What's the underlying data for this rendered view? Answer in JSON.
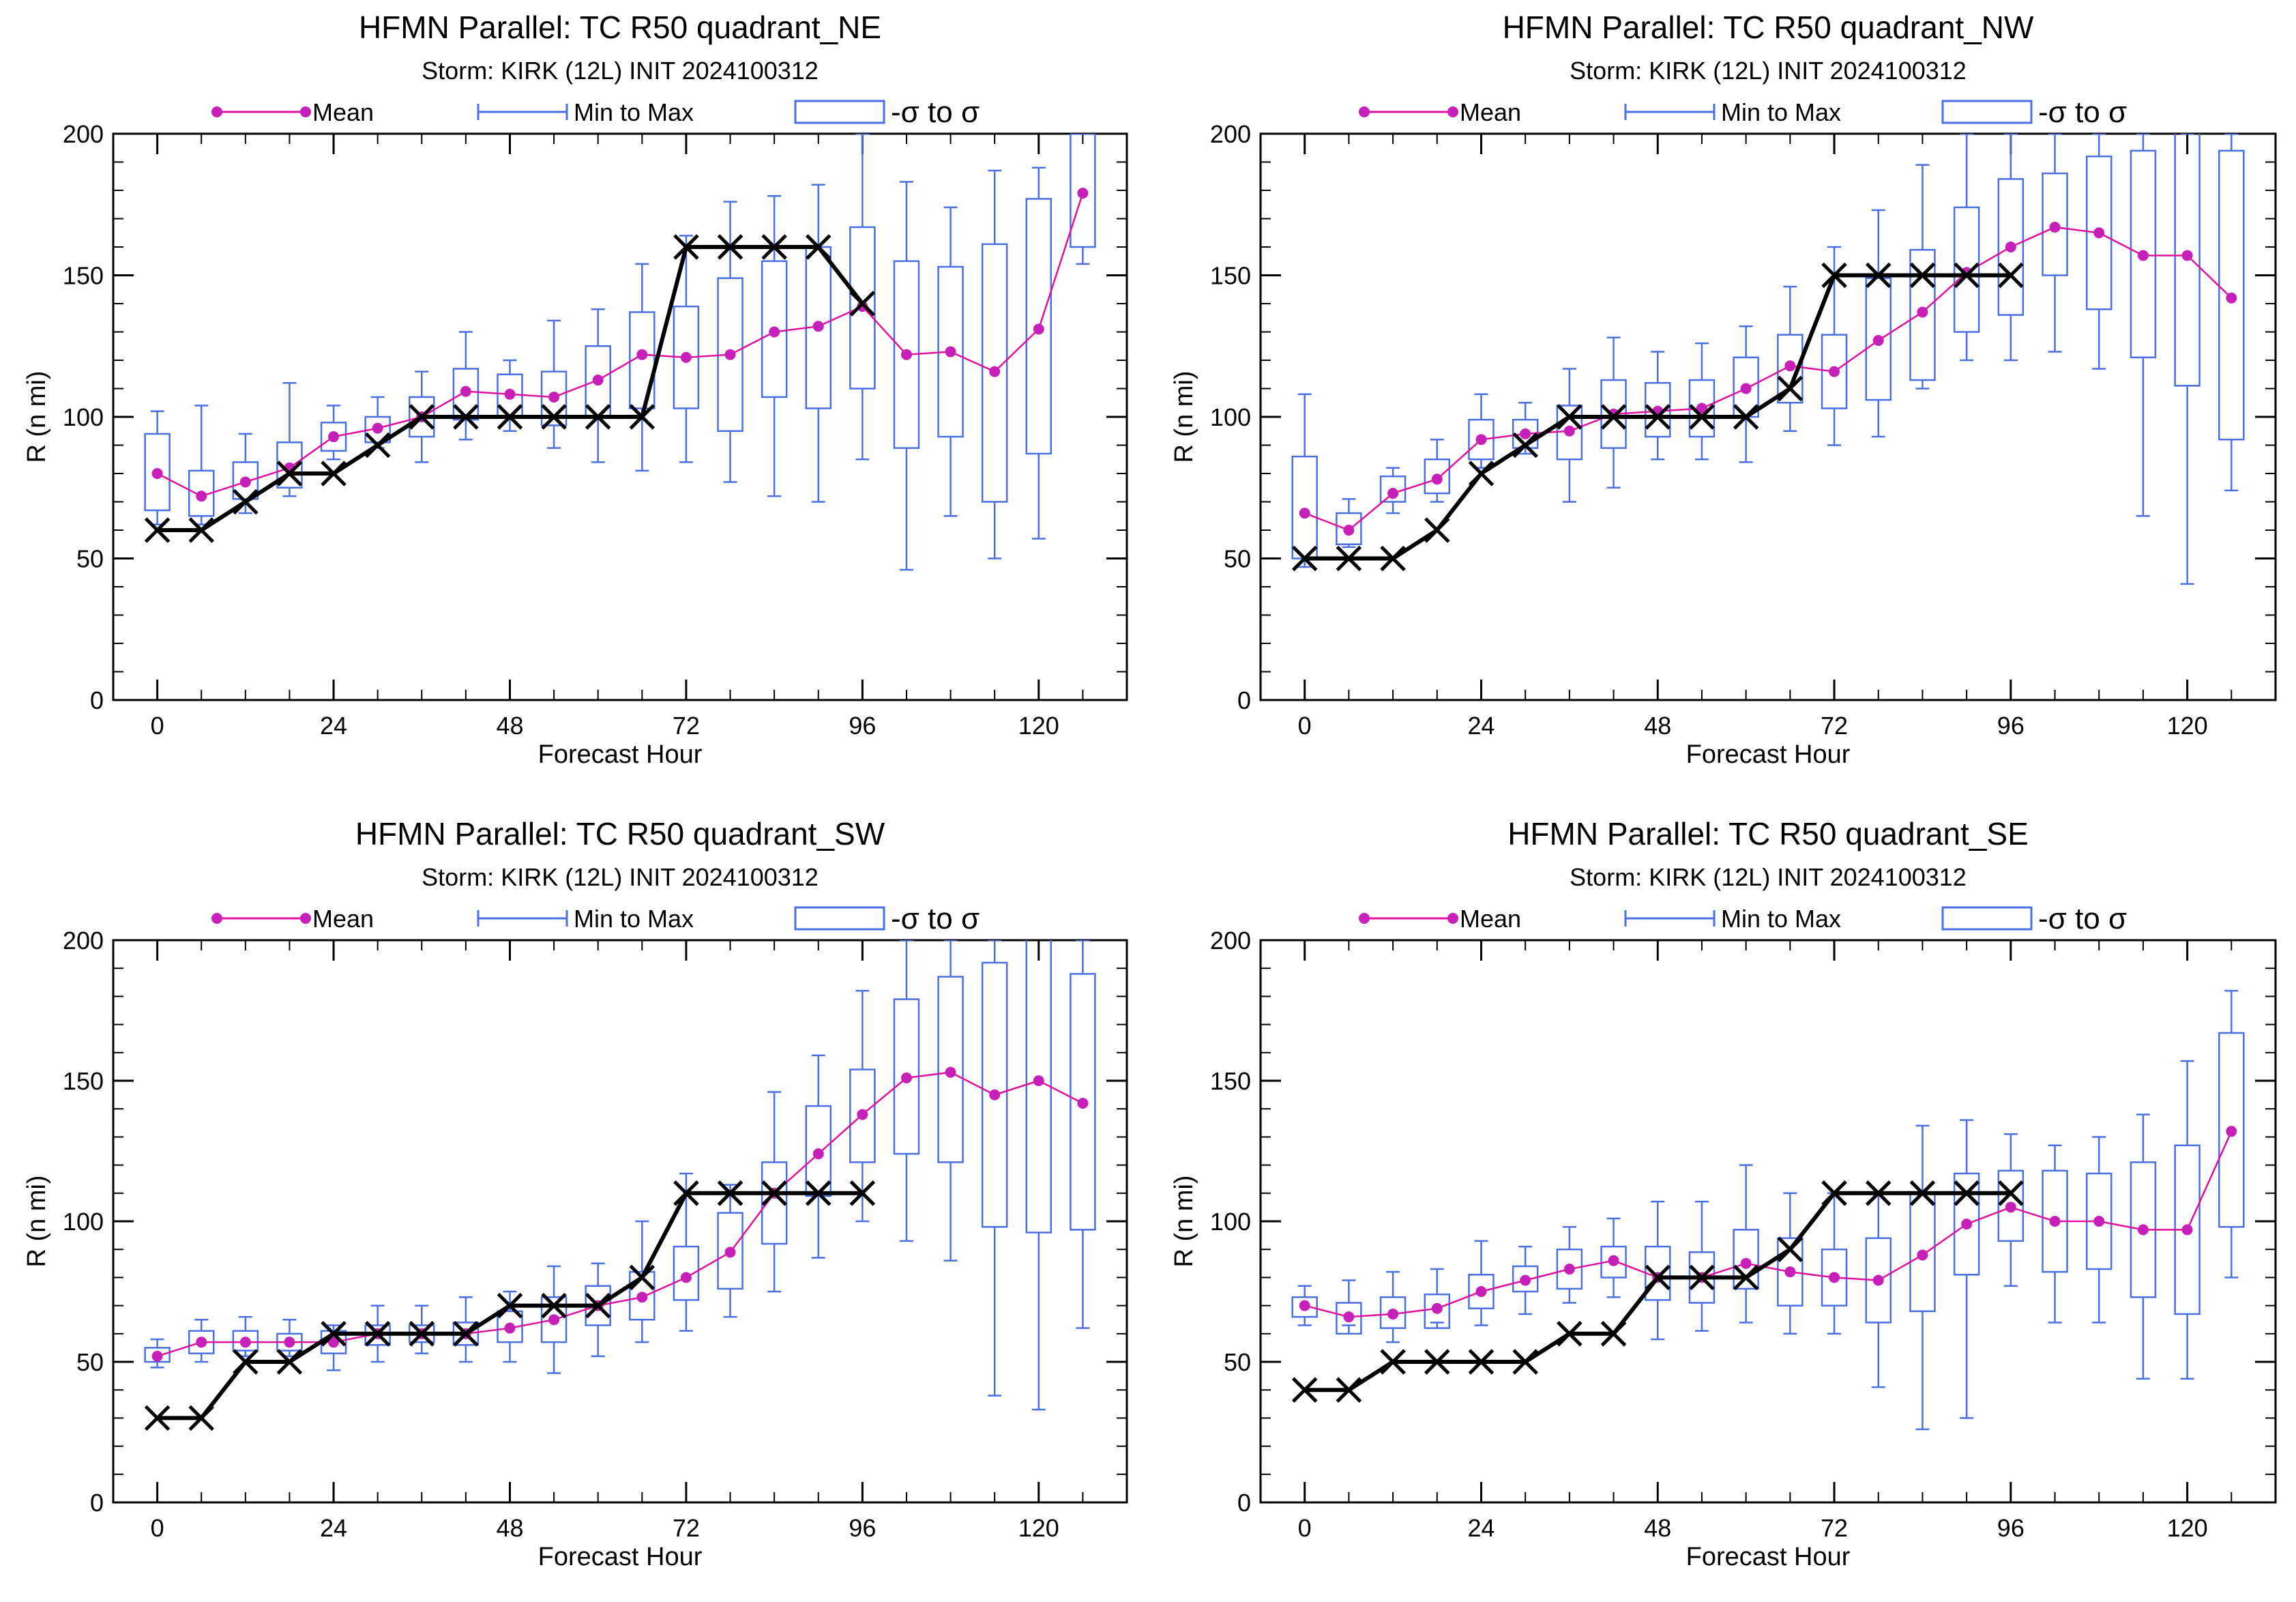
{
  "legend": {
    "mean_label": "Mean",
    "minmax_label": "Min to Max",
    "sigma_label": "-σ to σ"
  },
  "colors": {
    "mean": "#e0109f",
    "mean_dot": "#c720b9",
    "box": "#4a6fe3",
    "best_track": "#000000",
    "axes": "#000000"
  },
  "chart_data": [
    {
      "type": "box",
      "title": "HFMN Parallel: TC  R50 quadrant_NE",
      "subtitle": "Storm: KIRK (12L) INIT 2024100312",
      "xlabel": "Forecast Hour",
      "ylabel": "R (n mi)",
      "xticks": [
        "0",
        "24",
        "48",
        "72",
        "96",
        "120"
      ],
      "yticks": [
        "0",
        "50",
        "100",
        "150",
        "200"
      ],
      "xlim": [
        -6,
        132
      ],
      "ylim": [
        0,
        200
      ],
      "legend_position": "top",
      "hours": [
        0,
        6,
        12,
        18,
        24,
        30,
        36,
        42,
        48,
        54,
        60,
        66,
        72,
        78,
        84,
        90,
        96,
        102,
        108,
        114,
        120,
        126
      ],
      "mean": [
        80,
        72,
        77,
        82,
        93,
        96,
        100,
        109,
        108,
        107,
        113,
        122,
        121,
        122,
        130,
        132,
        139,
        122,
        123,
        116,
        131,
        179
      ],
      "min": [
        62,
        62,
        66,
        72,
        85,
        89,
        84,
        92,
        95,
        89,
        84,
        81,
        84,
        77,
        72,
        70,
        85,
        46,
        65,
        50,
        57,
        154
      ],
      "max": [
        102,
        104,
        94,
        112,
        104,
        107,
        116,
        130,
        120,
        134,
        138,
        154,
        164,
        176,
        178,
        182,
        200,
        183,
        174,
        187,
        188,
        200
      ],
      "sigma_low": [
        67,
        65,
        71,
        75,
        88,
        91,
        93,
        99,
        100,
        97,
        100,
        103,
        103,
        95,
        107,
        103,
        110,
        89,
        93,
        70,
        87,
        160
      ],
      "sigma_high": [
        94,
        81,
        84,
        91,
        98,
        100,
        107,
        117,
        115,
        116,
        125,
        137,
        139,
        149,
        155,
        160,
        167,
        155,
        153,
        161,
        177,
        200
      ],
      "best_track_hours": [
        0,
        6,
        12,
        18,
        24,
        30,
        36,
        42,
        48,
        54,
        60,
        66,
        72,
        78,
        84,
        90,
        96
      ],
      "best_track": [
        60,
        60,
        70,
        80,
        80,
        90,
        100,
        100,
        100,
        100,
        100,
        100,
        160,
        160,
        160,
        160,
        140
      ]
    },
    {
      "type": "box",
      "title": "HFMN Parallel: TC  R50 quadrant_NW",
      "subtitle": "Storm: KIRK (12L) INIT 2024100312",
      "xlabel": "Forecast Hour",
      "ylabel": "R (n mi)",
      "xticks": [
        "0",
        "24",
        "48",
        "72",
        "96",
        "120"
      ],
      "yticks": [
        "0",
        "50",
        "100",
        "150",
        "200"
      ],
      "xlim": [
        -6,
        132
      ],
      "ylim": [
        0,
        200
      ],
      "legend_position": "top",
      "hours": [
        0,
        6,
        12,
        18,
        24,
        30,
        36,
        42,
        48,
        54,
        60,
        66,
        72,
        78,
        84,
        90,
        96,
        102,
        108,
        114,
        120,
        126
      ],
      "mean": [
        66,
        60,
        73,
        78,
        92,
        94,
        95,
        101,
        102,
        103,
        110,
        118,
        116,
        127,
        137,
        151,
        160,
        167,
        165,
        157,
        157,
        142
      ],
      "min": [
        47,
        54,
        66,
        70,
        82,
        87,
        70,
        75,
        85,
        85,
        84,
        95,
        90,
        93,
        110,
        120,
        120,
        123,
        117,
        65,
        41,
        74
      ],
      "max": [
        108,
        71,
        82,
        92,
        108,
        105,
        117,
        128,
        123,
        126,
        132,
        146,
        160,
        173,
        189,
        200,
        200,
        200,
        200,
        200,
        200,
        200
      ],
      "sigma_low": [
        50,
        55,
        70,
        73,
        85,
        89,
        85,
        89,
        93,
        93,
        100,
        105,
        103,
        106,
        113,
        130,
        136,
        150,
        138,
        121,
        111,
        92
      ],
      "sigma_high": [
        86,
        66,
        79,
        85,
        99,
        99,
        104,
        113,
        112,
        113,
        121,
        129,
        129,
        149,
        159,
        174,
        184,
        186,
        192,
        194,
        202,
        194
      ],
      "best_track_hours": [
        0,
        6,
        12,
        18,
        24,
        30,
        36,
        42,
        48,
        54,
        60,
        66,
        72,
        78,
        84,
        90,
        96
      ],
      "best_track": [
        50,
        50,
        50,
        60,
        80,
        90,
        100,
        100,
        100,
        100,
        100,
        110,
        150,
        150,
        150,
        150,
        150
      ]
    },
    {
      "type": "box",
      "title": "HFMN Parallel: TC  R50 quadrant_SW",
      "subtitle": "Storm: KIRK (12L) INIT 2024100312",
      "xlabel": "Forecast Hour",
      "ylabel": "R (n mi)",
      "xticks": [
        "0",
        "24",
        "48",
        "72",
        "96",
        "120"
      ],
      "yticks": [
        "0",
        "50",
        "100",
        "150",
        "200"
      ],
      "xlim": [
        -6,
        132
      ],
      "ylim": [
        0,
        200
      ],
      "legend_position": "top",
      "hours": [
        0,
        6,
        12,
        18,
        24,
        30,
        36,
        42,
        48,
        54,
        60,
        66,
        72,
        78,
        84,
        90,
        96,
        102,
        108,
        114,
        120,
        126
      ],
      "mean": [
        52,
        57,
        57,
        57,
        57,
        60,
        60,
        60,
        62,
        65,
        70,
        73,
        80,
        89,
        110,
        124,
        138,
        151,
        153,
        145,
        150,
        142
      ],
      "min": [
        48,
        50,
        52,
        52,
        47,
        50,
        53,
        50,
        50,
        46,
        52,
        57,
        61,
        66,
        75,
        87,
        100,
        93,
        86,
        38,
        33,
        62
      ],
      "max": [
        58,
        65,
        66,
        65,
        63,
        70,
        70,
        73,
        75,
        84,
        85,
        100,
        117,
        113,
        146,
        159,
        182,
        200,
        200,
        200,
        204,
        200
      ],
      "sigma_low": [
        50,
        53,
        54,
        54,
        53,
        56,
        57,
        56,
        57,
        57,
        63,
        65,
        72,
        76,
        92,
        109,
        121,
        124,
        121,
        98,
        96,
        97
      ],
      "sigma_high": [
        55,
        61,
        61,
        60,
        61,
        63,
        63,
        64,
        68,
        73,
        77,
        82,
        91,
        103,
        121,
        141,
        154,
        179,
        187,
        192,
        204,
        188
      ],
      "best_track_hours": [
        0,
        6,
        12,
        18,
        24,
        30,
        36,
        42,
        48,
        54,
        60,
        66,
        72,
        78,
        84,
        90,
        96
      ],
      "best_track": [
        30,
        30,
        50,
        50,
        60,
        60,
        60,
        60,
        70,
        70,
        70,
        80,
        110,
        110,
        110,
        110,
        110
      ]
    },
    {
      "type": "box",
      "title": "HFMN Parallel: TC  R50 quadrant_SE",
      "subtitle": "Storm: KIRK (12L) INIT 2024100312",
      "xlabel": "Forecast Hour",
      "ylabel": "R (n mi)",
      "xticks": [
        "0",
        "24",
        "48",
        "72",
        "96",
        "120"
      ],
      "yticks": [
        "0",
        "50",
        "100",
        "150",
        "200"
      ],
      "xlim": [
        -6,
        132
      ],
      "ylim": [
        0,
        200
      ],
      "legend_position": "top",
      "hours": [
        0,
        6,
        12,
        18,
        24,
        30,
        36,
        42,
        48,
        54,
        60,
        66,
        72,
        78,
        84,
        90,
        96,
        102,
        108,
        114,
        120,
        126
      ],
      "mean": [
        70,
        66,
        67,
        69,
        75,
        79,
        83,
        86,
        80,
        80,
        85,
        82,
        80,
        79,
        88,
        99,
        105,
        100,
        100,
        97,
        97,
        132
      ],
      "min": [
        63,
        63,
        57,
        64,
        63,
        67,
        71,
        73,
        58,
        61,
        64,
        60,
        60,
        41,
        26,
        30,
        77,
        64,
        64,
        44,
        44,
        80
      ],
      "max": [
        77,
        79,
        82,
        83,
        93,
        91,
        98,
        101,
        107,
        107,
        120,
        110,
        110,
        110,
        134,
        136,
        131,
        127,
        130,
        138,
        157,
        182
      ],
      "sigma_low": [
        66,
        60,
        62,
        62,
        69,
        75,
        76,
        80,
        72,
        71,
        76,
        70,
        70,
        64,
        68,
        81,
        93,
        82,
        83,
        73,
        67,
        98
      ],
      "sigma_high": [
        73,
        71,
        73,
        74,
        81,
        84,
        90,
        91,
        91,
        89,
        97,
        94,
        90,
        94,
        110,
        117,
        118,
        118,
        117,
        121,
        127,
        167
      ],
      "best_track_hours": [
        0,
        6,
        12,
        18,
        24,
        30,
        36,
        42,
        48,
        54,
        60,
        66,
        72,
        78,
        84,
        90,
        96
      ],
      "best_track": [
        40,
        40,
        50,
        50,
        50,
        50,
        60,
        60,
        80,
        80,
        80,
        90,
        110,
        110,
        110,
        110,
        110
      ]
    }
  ]
}
